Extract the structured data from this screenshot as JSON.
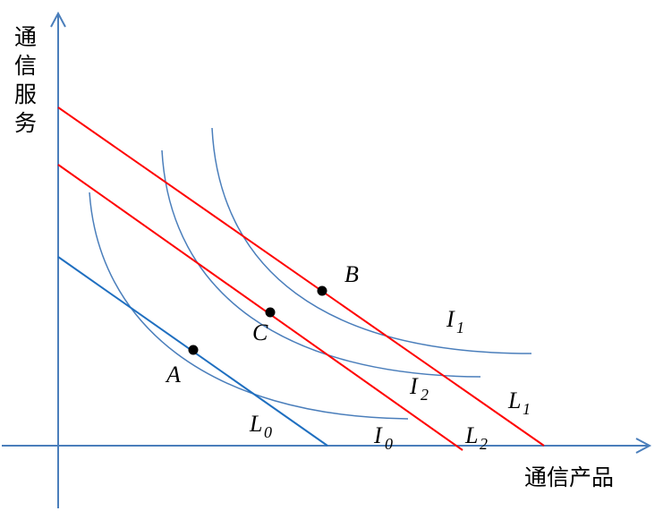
{
  "axes": {
    "y_label": [
      "通",
      "信",
      "服",
      "务"
    ],
    "x_label": "通信产品"
  },
  "budget_lines": [
    {
      "name": "L",
      "sub": "0",
      "color": "#1f6fc0"
    },
    {
      "name": "L",
      "sub": "1",
      "color": "#ff0000"
    },
    {
      "name": "L",
      "sub": "2",
      "color": "#ff0000"
    }
  ],
  "indifference_curves": [
    {
      "name": "I",
      "sub": "0",
      "color": "#4a7ebb"
    },
    {
      "name": "I",
      "sub": "1",
      "color": "#4a7ebb"
    },
    {
      "name": "I",
      "sub": "2",
      "color": "#4a7ebb"
    }
  ],
  "points": [
    {
      "name": "A"
    },
    {
      "name": "B"
    },
    {
      "name": "C"
    }
  ],
  "colors": {
    "axis": "#4a7ebb",
    "point": "#000000"
  }
}
